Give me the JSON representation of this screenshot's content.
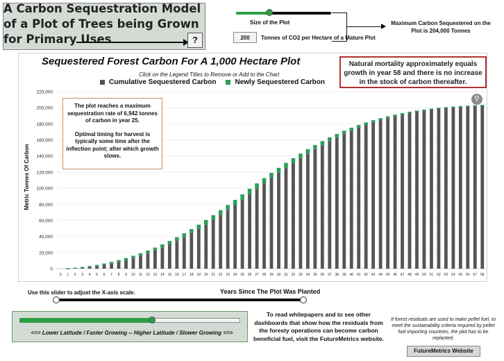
{
  "header": {
    "title": "A Carbon Sequestration Model of a Plot of Trees being Grown for Primary Uses",
    "help_label": "?"
  },
  "controls": {
    "plot_size_label": "Size of the Plot",
    "plot_size_slider_value": 0.35,
    "co2_value": "200",
    "co2_label": "Tonnes of CO2 per Hectare of a Mature Plot",
    "max_carbon_text": "Maximum Carbon Sequestered on the Plot is 204,000 Tonnes"
  },
  "notes": {
    "mortality": "Natural mortality approximately equals growth in year 58 and there is no increase in the stock of carbon thereafter.",
    "rate_para1": "The plot reaches a maximum sequestration rate of 6,942 tonnes of carbon in year 25.",
    "rate_para2": "Optimal timing for harvest is typically some time after the inflection point; after which growth slows."
  },
  "chart_data": {
    "type": "bar",
    "title": "Sequestered Forest Carbon For A 1,000 Hectare Plot",
    "legend_hint": "Click on the Legend Titles to Remove or Add to the Chart",
    "xlabel": "Years Since The Plot Was Planted",
    "ylabel": "Metric Tonnes Of Carbon",
    "ylim": [
      0,
      220000
    ],
    "yticks": [
      "0",
      "20,000",
      "40,000",
      "60,000",
      "80,000",
      "100,000",
      "120,000",
      "140,000",
      "160,000",
      "180,000",
      "200,000",
      "220,000"
    ],
    "x": [
      0,
      1,
      2,
      3,
      4,
      5,
      6,
      7,
      8,
      9,
      10,
      11,
      12,
      13,
      14,
      15,
      16,
      17,
      18,
      19,
      20,
      21,
      22,
      23,
      24,
      25,
      26,
      27,
      28,
      29,
      30,
      31,
      32,
      33,
      34,
      35,
      36,
      37,
      38,
      39,
      40,
      41,
      42,
      43,
      44,
      45,
      46,
      47,
      48,
      49,
      50,
      51,
      52,
      53,
      54,
      55,
      56,
      57,
      58
    ],
    "legend_position": "top",
    "series": [
      {
        "name": "Cumulative Sequestered Carbon",
        "color": "#555555",
        "values": [
          0,
          500,
          1200,
          2100,
          3300,
          4700,
          6400,
          8400,
          10700,
          13200,
          16000,
          19100,
          22500,
          26200,
          30200,
          34500,
          39100,
          44000,
          49200,
          54700,
          60500,
          66500,
          72700,
          79000,
          85500,
          92400,
          99300,
          106000,
          112500,
          119000,
          125300,
          131400,
          137300,
          143000,
          148500,
          153700,
          158600,
          163200,
          167500,
          171500,
          175200,
          178600,
          181700,
          184500,
          187000,
          189300,
          191400,
          193300,
          195000,
          196500,
          197800,
          198900,
          199900,
          200700,
          201400,
          202000,
          202500,
          203000,
          203500
        ]
      },
      {
        "name": "Newly Sequestered Carbon",
        "color": "#2e9e5a",
        "values": [
          0,
          500,
          700,
          900,
          1200,
          1400,
          1700,
          2000,
          2300,
          2500,
          2800,
          3100,
          3400,
          3700,
          4000,
          4300,
          4600,
          4900,
          5200,
          5500,
          5800,
          6000,
          6200,
          6300,
          6500,
          6942,
          6900,
          6700,
          6500,
          6500,
          6300,
          6100,
          5900,
          5700,
          5500,
          5200,
          4900,
          4600,
          4300,
          4000,
          3700,
          3400,
          3100,
          2800,
          2500,
          2300,
          2100,
          1900,
          1700,
          1500,
          1300,
          1100,
          1000,
          800,
          700,
          600,
          500,
          500,
          500
        ]
      }
    ],
    "xaxis_slider_label": "Use this slider to adjust the X-axis scale.",
    "xaxis_range": [
      0,
      58
    ]
  },
  "latitude": {
    "label": "<== Lower Latitude / Faster Growing -- Higher Latitude / Slower Growing ==>",
    "slider_value": 0.6
  },
  "footer": {
    "whitepaper_text": "To read whitepapers and to see other dashboards that show how the residuals from the foresty operations can become carbon beneficial fuel, visit the FutureMetrics website.",
    "pellet_note": "If forest residuals are used to make pellet fuel, to meet the sustainability criteria required by pellet fuel importing countries, the plot has to be replanted.",
    "website_button": "FutureMetrics Website"
  },
  "icons": {
    "zoom": "magnifier-icon",
    "help": "question-icon"
  }
}
